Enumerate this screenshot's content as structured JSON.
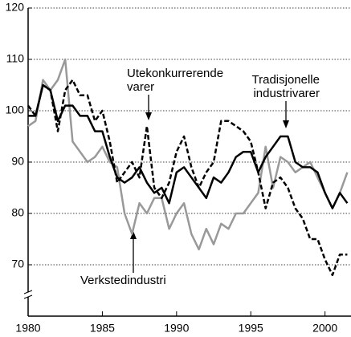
{
  "chart_data": {
    "type": "line",
    "x": [
      1980,
      1980.5,
      1981,
      1981.5,
      1982,
      1982.5,
      1983,
      1983.5,
      1984,
      1984.5,
      1985,
      1985.5,
      1986,
      1986.5,
      1987,
      1987.5,
      1988,
      1988.5,
      1989,
      1989.5,
      1990,
      1990.5,
      1991,
      1991.5,
      1992,
      1992.5,
      1993,
      1993.5,
      1994,
      1994.5,
      1995,
      1995.5,
      1996,
      1996.5,
      1997,
      1997.5,
      1998,
      1998.5,
      1999,
      1999.5,
      2000,
      2000.5,
      2001,
      2001.5
    ],
    "series": [
      {
        "color": "#999999",
        "dash": false,
        "values": [
          97,
          98,
          106,
          104,
          106,
          110,
          94,
          92,
          90,
          91,
          93,
          90,
          89,
          80,
          76,
          82,
          80,
          83,
          83,
          77,
          80,
          82,
          76,
          73,
          77,
          74,
          78,
          77,
          80,
          80,
          82,
          84,
          93,
          85,
          91,
          90,
          88,
          89,
          90,
          87,
          84,
          81,
          84,
          88
        ]
      },
      {
        "color": "#000000",
        "dash": true,
        "values": [
          101,
          99,
          105,
          104,
          96,
          104,
          106,
          103,
          103,
          98,
          100,
          94,
          86,
          88,
          90,
          87,
          97,
          85,
          83,
          86,
          92,
          95,
          89,
          85,
          88,
          90,
          98,
          98,
          97,
          96,
          94,
          88,
          81,
          86,
          87,
          85,
          81,
          79,
          75,
          75,
          71,
          68,
          72,
          72
        ]
      },
      {
        "color": "#000000",
        "dash": false,
        "values": [
          99,
          99,
          105,
          104,
          98,
          101,
          101,
          99,
          99,
          96,
          96,
          91,
          87,
          86,
          87,
          89,
          86,
          84,
          85,
          82,
          88,
          89,
          87,
          85,
          83,
          87,
          86,
          88,
          91,
          92,
          92,
          88,
          91,
          93,
          95,
          95,
          90,
          89,
          89,
          88,
          84,
          81,
          84,
          82
        ]
      }
    ],
    "annotations": [
      {
        "lines": [
          "Utekonkurrerende",
          "varer"
        ]
      },
      {
        "lines": [
          "Tradisjonelle",
          "industrivarer"
        ]
      },
      {
        "lines": [
          "Verkstedindustri"
        ]
      }
    ],
    "xlim": [
      1980,
      2001.75
    ],
    "xticks": [
      1980,
      1985,
      1990,
      1995,
      2000
    ],
    "ylim": [
      60,
      120
    ],
    "yticks": [
      70,
      80,
      90,
      100,
      110,
      120
    ],
    "grid": true
  }
}
